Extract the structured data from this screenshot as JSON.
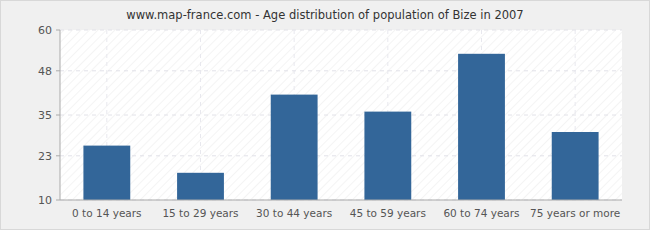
{
  "chart_data": {
    "type": "bar",
    "title": "www.map-france.com - Age distribution of population of Bize in 2007",
    "categories": [
      "0 to 14 years",
      "15 to 29 years",
      "30 to 44 years",
      "45 to 59 years",
      "60 to 74 years",
      "75 years or more"
    ],
    "values": [
      26,
      18,
      41,
      36,
      53,
      30
    ],
    "color": "#336699",
    "ylim": [
      10,
      60
    ],
    "yticks": [
      10,
      23,
      35,
      48,
      60
    ],
    "grid": true
  }
}
